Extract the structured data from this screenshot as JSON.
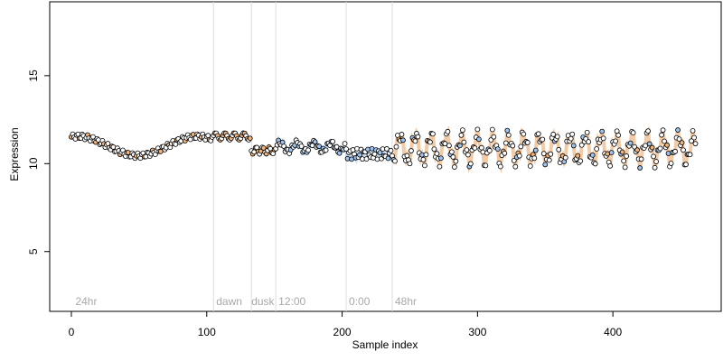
{
  "chart_data": {
    "type": "scatter",
    "title": "",
    "xlabel": "Sample index",
    "ylabel": "Expression",
    "xlim": [
      -16,
      480
    ],
    "ylim": [
      1.6,
      19.2
    ],
    "x_ticks": [
      "0",
      "100",
      "200",
      "300",
      "400"
    ],
    "y_ticks": [
      "5",
      "10",
      "15"
    ],
    "x_tick_values": [
      0,
      100,
      200,
      300,
      400
    ],
    "y_tick_values": [
      5,
      10,
      15
    ],
    "grid": false,
    "section_boundaries": [
      105,
      133,
      151,
      203,
      237
    ],
    "section_labels": [
      {
        "text": "24hr",
        "x": 3
      },
      {
        "text": "dawn",
        "x": 107
      },
      {
        "text": "dusk",
        "x": 133
      },
      {
        "text": "12:00",
        "x": 153
      },
      {
        "text": "0:00",
        "x": 205
      },
      {
        "text": "48hr",
        "x": 239
      }
    ],
    "series_count": 462,
    "fit_color_orange": "#e8a15c",
    "fit_color_blue": "#a6c8ef",
    "point_fill_orange": "#f2b37a",
    "point_fill_blue": "#9ec3ef",
    "point_stroke": "#000000",
    "boundary_color": "#dcdcdc",
    "highlight_ranges": [
      {
        "from": 105,
        "to": 133,
        "color": "orange"
      },
      {
        "from": 133,
        "to": 151,
        "color": "orange"
      },
      {
        "from": 151,
        "to": 203,
        "color": "blue"
      },
      {
        "from": 203,
        "to": 237,
        "color": "blue"
      },
      {
        "from": 237,
        "to": 462,
        "color": "mixed"
      }
    ]
  }
}
